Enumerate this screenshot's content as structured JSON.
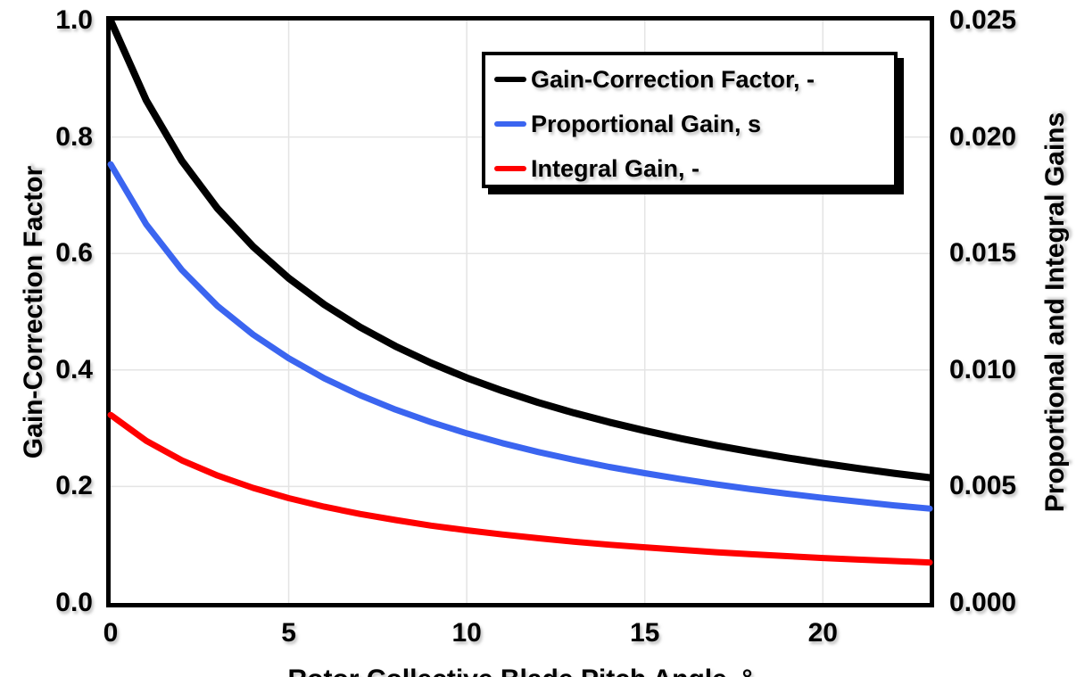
{
  "chart_data": {
    "type": "line",
    "title": "",
    "xlabel": "Rotor Collective Blade Pitch Angle, °",
    "ylabel_left": "Gain-Correction Factor",
    "ylabel_right": "Proportional and Integral Gains",
    "xlim": [
      0,
      23
    ],
    "ylim_left": [
      0.0,
      1.0
    ],
    "ylim_right": [
      0.0,
      0.025
    ],
    "grid": true,
    "legend_position": "top-right-inside",
    "x_ticks": {
      "values": [
        0,
        5,
        10,
        15,
        20
      ],
      "labels": [
        "0",
        "5",
        "10",
        "15",
        "20"
      ]
    },
    "y_ticks_left": {
      "values": [
        1.0,
        0.8,
        0.6,
        0.4,
        0.2,
        0.0
      ],
      "labels": [
        "1.0",
        "0.8",
        "0.6",
        "0.4",
        "0.2",
        "0.0"
      ]
    },
    "y_ticks_right": {
      "values": [
        0.025,
        0.02,
        0.015,
        0.01,
        0.005,
        0.0
      ],
      "labels": [
        "0.025",
        "0.020",
        "0.015",
        "0.010",
        "0.005",
        "0.000"
      ]
    },
    "x": [
      0,
      1,
      2,
      3,
      4,
      5,
      6,
      7,
      8,
      9,
      10,
      11,
      12,
      13,
      14,
      15,
      16,
      17,
      18,
      19,
      20,
      21,
      22,
      23
    ],
    "series": [
      {
        "name": "Gain-Correction Factor, -",
        "axis": "left",
        "color": "#000000",
        "line_width": 8,
        "values": [
          1.0,
          0.8631,
          0.7591,
          0.6775,
          0.6118,
          0.5576,
          0.5123,
          0.4738,
          0.4407,
          0.4119,
          0.3866,
          0.3643,
          0.3443,
          0.3265,
          0.3104,
          0.2958,
          0.2826,
          0.2705,
          0.2594,
          0.2491,
          0.2397,
          0.2309,
          0.2227,
          0.2151
        ]
      },
      {
        "name": "Proportional Gain, s",
        "axis": "right",
        "color": "#3B65F0",
        "line_width": 7,
        "values": [
          0.01883,
          0.01625,
          0.01429,
          0.01275,
          0.01152,
          0.0105,
          0.00964,
          0.00892,
          0.0083,
          0.00776,
          0.00728,
          0.00686,
          0.00648,
          0.00615,
          0.00584,
          0.00557,
          0.00532,
          0.00509,
          0.00488,
          0.00469,
          0.00451,
          0.00435,
          0.00419,
          0.00405
        ]
      },
      {
        "name": "Integral Gain, -",
        "axis": "right",
        "color": "#FF0000",
        "line_width": 7,
        "values": [
          0.00807,
          0.00696,
          0.00612,
          0.00547,
          0.00494,
          0.0045,
          0.00413,
          0.00382,
          0.00356,
          0.00332,
          0.00312,
          0.00294,
          0.00278,
          0.00263,
          0.0025,
          0.00239,
          0.00228,
          0.00218,
          0.00209,
          0.00201,
          0.00193,
          0.00186,
          0.0018,
          0.00174
        ]
      }
    ]
  },
  "legend": {
    "items": [
      {
        "label": "Gain-Correction Factor, -",
        "color": "#000000"
      },
      {
        "label": "Proportional Gain, s",
        "color": "#3B65F0"
      },
      {
        "label": "Integral Gain, -",
        "color": "#FF0000"
      }
    ]
  },
  "colors": {
    "background": "#FFFFFF",
    "axis_frame": "#000000",
    "gridline": "#E4E4E4"
  }
}
